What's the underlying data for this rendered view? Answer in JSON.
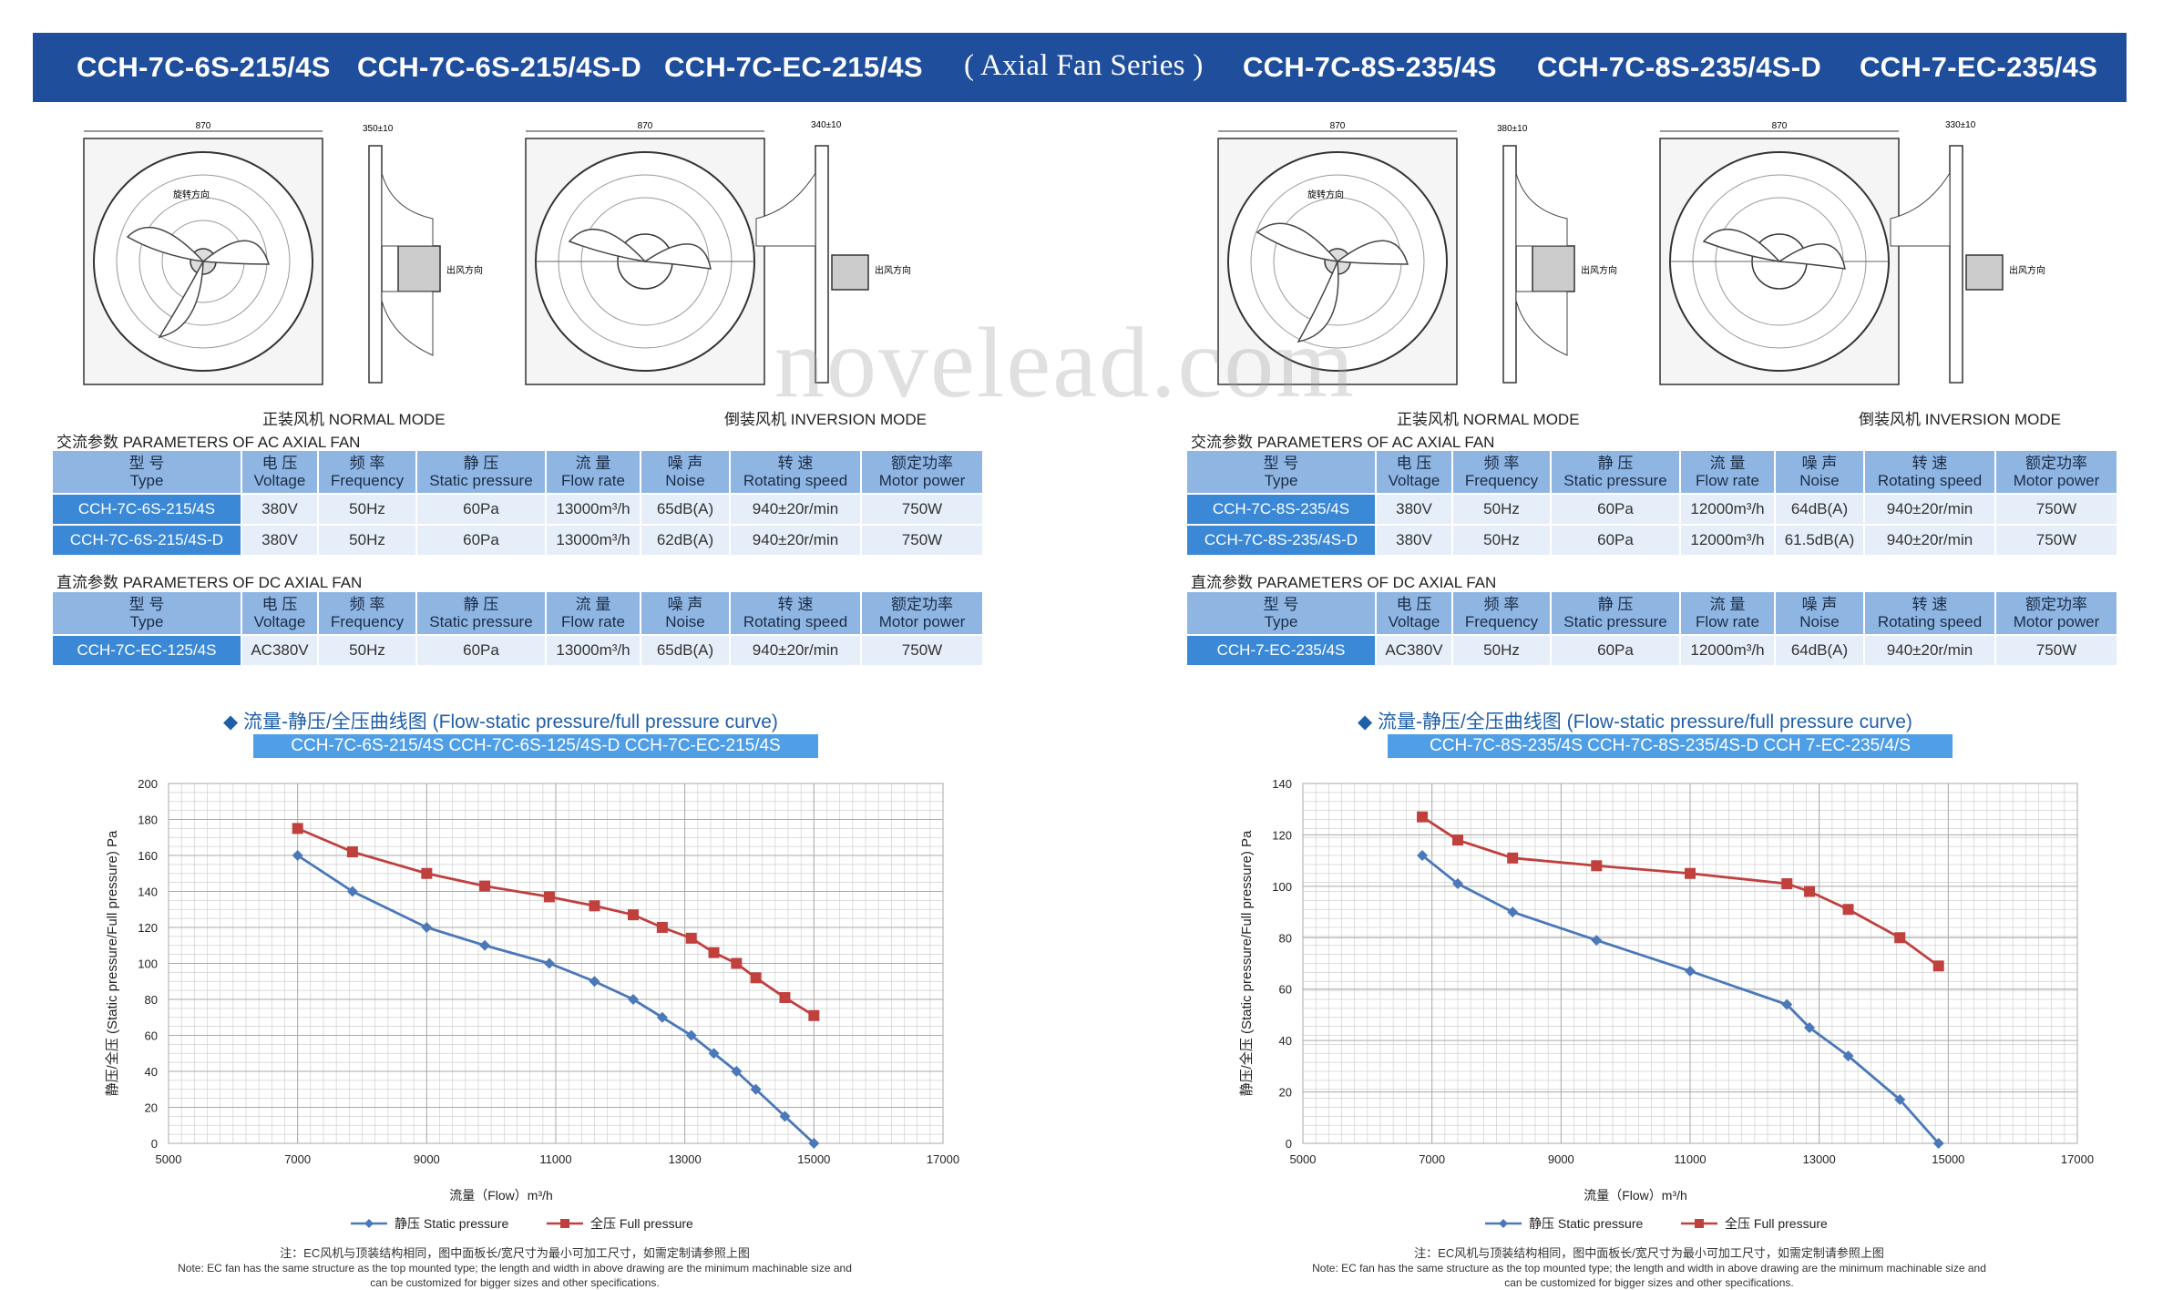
{
  "banner": {
    "m1": "CCH-7C-6S-215/4S",
    "m2": "CCH-7C-6S-215/4S-D",
    "m3": "CCH-7C-EC-215/4S",
    "series": "( Axial Fan Series )",
    "m4": "CCH-7C-8S-235/4S",
    "m5": "CCH-7C-8S-235/4S-D",
    "m6": "CCH-7-EC-235/4S"
  },
  "watermark": "novelead.com",
  "left": {
    "drawing": {
      "normal_caption": "正装风机  NORMAL MODE",
      "inversion_caption": "倒装风机  INVERSION MODE",
      "dim_width": "870",
      "dim_side_normal": "350±10",
      "dim_side_inv": "340±10",
      "rotation": "旋转方向",
      "outlet": "出风方向"
    },
    "ac_label": "交流参数  PARAMETERS OF AC AXIAL FAN",
    "dc_label": "直流参数  PARAMETERS OF DC AXIAL FAN",
    "headers": [
      {
        "cn": "型 号",
        "en": "Type"
      },
      {
        "cn": "电 压",
        "en": "Voltage"
      },
      {
        "cn": "频 率",
        "en": "Frequency"
      },
      {
        "cn": "静 压",
        "en": "Static pressure"
      },
      {
        "cn": "流 量",
        "en": "Flow rate"
      },
      {
        "cn": "噪 声",
        "en": "Noise"
      },
      {
        "cn": "转 速",
        "en": "Rotating speed"
      },
      {
        "cn": "额定功率",
        "en": "Motor power"
      }
    ],
    "ac_rows": [
      [
        "CCH-7C-6S-215/4S",
        "380V",
        "50Hz",
        "60Pa",
        "13000m³/h",
        "65dB(A)",
        "940±20r/min",
        "750W"
      ],
      [
        "CCH-7C-6S-215/4S-D",
        "380V",
        "50Hz",
        "60Pa",
        "13000m³/h",
        "62dB(A)",
        "940±20r/min",
        "750W"
      ]
    ],
    "dc_rows": [
      [
        "CCH-7C-EC-125/4S",
        "AC380V",
        "50Hz",
        "60Pa",
        "13000m³/h",
        "65dB(A)",
        "940±20r/min",
        "750W"
      ]
    ],
    "curve_title": "◆  流量-静压/全压曲线图 (Flow-static pressure/full pressure curve)",
    "curve_models": "CCH-7C-6S-215/4S  CCH-7C-6S-125/4S-D  CCH-7C-EC-215/4S",
    "note_cn": "注：EC风机与顶装结构相同，图中面板长/宽尺寸为最小可加工尺寸，如需定制请参照上图",
    "note_en1": "Note: EC fan has the same structure as the top mounted type; the length and width in above drawing are the minimum machinable size and",
    "note_en2": "can be customized for bigger sizes and other specifications."
  },
  "right": {
    "drawing": {
      "normal_caption": "正装风机  NORMAL MODE",
      "inversion_caption": "倒装风机  INVERSION MODE",
      "dim_width": "870",
      "dim_side_normal": "380±10",
      "dim_side_inv": "330±10",
      "rotation": "旋转方向",
      "outlet": "出风方向"
    },
    "ac_label": "交流参数  PARAMETERS OF AC AXIAL FAN",
    "dc_label": "直流参数  PARAMETERS OF DC AXIAL FAN",
    "headers": [
      {
        "cn": "型 号",
        "en": "Type"
      },
      {
        "cn": "电 压",
        "en": "Voltage"
      },
      {
        "cn": "频 率",
        "en": "Frequency"
      },
      {
        "cn": "静 压",
        "en": "Static pressure"
      },
      {
        "cn": "流 量",
        "en": "Flow rate"
      },
      {
        "cn": "噪 声",
        "en": "Noise"
      },
      {
        "cn": "转 速",
        "en": "Rotating speed"
      },
      {
        "cn": "额定功率",
        "en": "Motor power"
      }
    ],
    "ac_rows": [
      [
        "CCH-7C-8S-235/4S",
        "380V",
        "50Hz",
        "60Pa",
        "12000m³/h",
        "64dB(A)",
        "940±20r/min",
        "750W"
      ],
      [
        "CCH-7C-8S-235/4S-D",
        "380V",
        "50Hz",
        "60Pa",
        "12000m³/h",
        "61.5dB(A)",
        "940±20r/min",
        "750W"
      ]
    ],
    "dc_rows": [
      [
        "CCH-7-EC-235/4S",
        "AC380V",
        "50Hz",
        "60Pa",
        "12000m³/h",
        "64dB(A)",
        "940±20r/min",
        "750W"
      ]
    ],
    "curve_title": "◆  流量-静压/全压曲线图 (Flow-static pressure/full pressure curve)",
    "curve_models": "CCH-7C-8S-235/4S  CCH-7C-8S-235/4S-D  CCH 7-EC-235/4/S",
    "note_cn": "注：EC风机与顶装结构相同，图中面板长/宽尺寸为最小可加工尺寸，如需定制请参照上图",
    "note_en1": "Note: EC fan has the same structure as the top mounted type; the length and width in above drawing are the minimum machinable size and",
    "note_en2": "can be customized for bigger sizes and other specifications."
  },
  "chart_data": [
    {
      "type": "line",
      "xlabel": "流量（Flow）m³/h",
      "ylabel": "静压/全压 (Static pressure/Full pressure) Pa",
      "xlim": [
        5000,
        17000
      ],
      "ylim": [
        0,
        200
      ],
      "xticks": [
        5000,
        7000,
        9000,
        11000,
        13000,
        15000,
        17000
      ],
      "yticks": [
        0,
        20,
        40,
        60,
        80,
        100,
        120,
        140,
        160,
        180,
        200
      ],
      "grid": true,
      "legend": "bottom",
      "series": [
        {
          "name": "静压 Static pressure",
          "color": "#4a78b8",
          "x": [
            7000,
            7850,
            9000,
            9900,
            10900,
            11600,
            12200,
            12650,
            13100,
            13450,
            13800,
            14100,
            14550,
            15000
          ],
          "y": [
            160,
            140,
            120,
            110,
            100,
            90,
            80,
            70,
            60,
            50,
            40,
            30,
            15,
            0
          ]
        },
        {
          "name": "全压 Full pressure",
          "color": "#c0403e",
          "x": [
            7000,
            7850,
            9000,
            9900,
            10900,
            11600,
            12200,
            12650,
            13100,
            13450,
            13800,
            14100,
            14550,
            15000
          ],
          "y": [
            175,
            162,
            150,
            143,
            137,
            132,
            127,
            120,
            114,
            106,
            100,
            92,
            81,
            71
          ]
        }
      ]
    },
    {
      "type": "line",
      "xlabel": "流量（Flow）m³/h",
      "ylabel": "静压/全压 (Static pressure/Full pressure) Pa",
      "xlim": [
        5000,
        17000
      ],
      "ylim": [
        0,
        140
      ],
      "xticks": [
        5000,
        7000,
        9000,
        11000,
        13000,
        15000,
        17000
      ],
      "yticks": [
        0,
        20,
        40,
        60,
        80,
        100,
        120,
        140
      ],
      "grid": true,
      "legend": "bottom",
      "series": [
        {
          "name": "静压 Static pressure",
          "color": "#4a78b8",
          "x": [
            6850,
            7400,
            8250,
            9550,
            11000,
            12500,
            12850,
            13450,
            14250,
            14850
          ],
          "y": [
            112,
            101,
            90,
            79,
            67,
            54,
            45,
            34,
            17,
            0
          ]
        },
        {
          "name": "全压 Full pressure",
          "color": "#c0403e",
          "x": [
            6850,
            7400,
            8250,
            9550,
            11000,
            12500,
            12850,
            13450,
            14250,
            14850
          ],
          "y": [
            127,
            118,
            111,
            108,
            105,
            101,
            98,
            91,
            80,
            69
          ]
        }
      ]
    }
  ]
}
